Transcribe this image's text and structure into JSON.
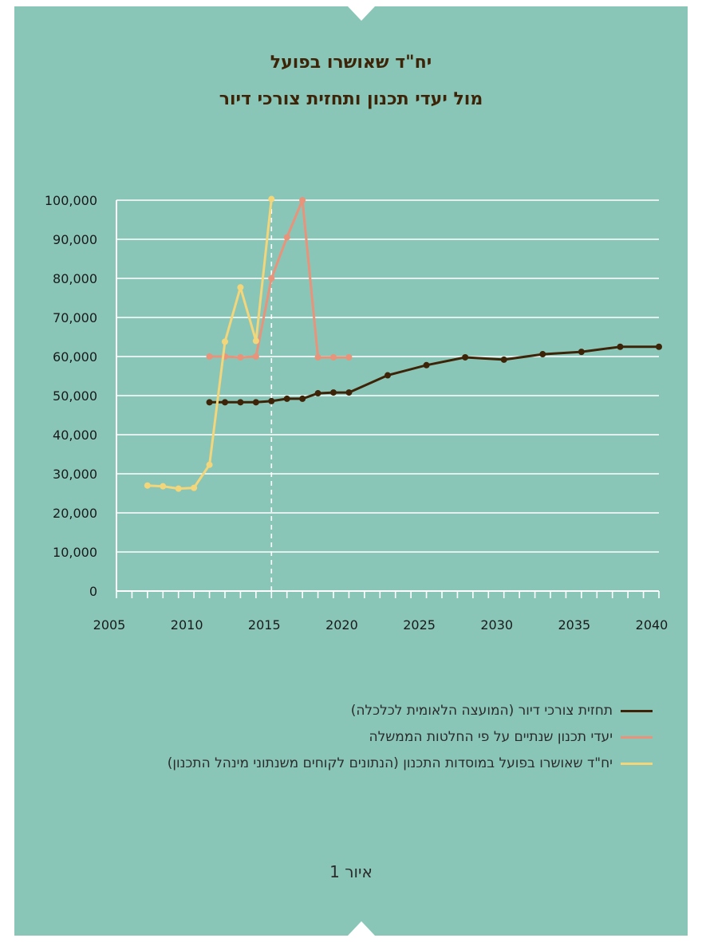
{
  "chart_data": {
    "type": "line",
    "title": [
      "יח\"ד שאושרו בפועל",
      "מול יעדי תכנון ותחזית צורכי דיור"
    ],
    "xlabel": "",
    "ylabel": "",
    "xlim": [
      2005,
      2040
    ],
    "ylim": [
      0,
      100000
    ],
    "x_ticks": [
      "2005",
      "2010",
      "2015",
      "2020",
      "2025",
      "2030",
      "2035",
      "2040"
    ],
    "y_ticks": [
      "0",
      "10,000",
      "20,000",
      "30,000",
      "40,000",
      "50,000",
      "60,000",
      "70,000",
      "80,000",
      "90,000",
      "100,000"
    ],
    "grid": true,
    "reference_line": {
      "x": 2015,
      "style": "dashed"
    },
    "legend_position": "bottom",
    "series": [
      {
        "name": "תחזית צורכי דיור (המועצה הלאומית לכלכלה)",
        "color": "#3d2408",
        "points": [
          [
            2011,
            48300
          ],
          [
            2012,
            48300
          ],
          [
            2013,
            48300
          ],
          [
            2014,
            48300
          ],
          [
            2015,
            48600
          ],
          [
            2016,
            49200
          ],
          [
            2017,
            49200
          ],
          [
            2018,
            50600
          ],
          [
            2019,
            50800
          ],
          [
            2020,
            50800
          ],
          [
            2022.5,
            55200
          ],
          [
            2025,
            57800
          ],
          [
            2027.5,
            59800
          ],
          [
            2030,
            59200
          ],
          [
            2032.5,
            60600
          ],
          [
            2035,
            61200
          ],
          [
            2037.5,
            62500
          ],
          [
            2040,
            62500
          ]
        ]
      },
      {
        "name": "יעדי תכנון שנתיים על פי החלטות הממשלה",
        "color": "#e8937a",
        "points": [
          [
            2011,
            60000
          ],
          [
            2012,
            60000
          ],
          [
            2013,
            59800
          ],
          [
            2014,
            60000
          ],
          [
            2015,
            80000
          ],
          [
            2016,
            90500
          ],
          [
            2017,
            100000
          ],
          [
            2018,
            59800
          ],
          [
            2019,
            59800
          ],
          [
            2020,
            59800
          ]
        ]
      },
      {
        "name": "יח\"ד שאושרו בפועל במוסדות התכנון (הנתונים לקוחים משנתוני מינהל התכנון)",
        "color": "#f3d57a",
        "points": [
          [
            2007,
            27000
          ],
          [
            2008,
            26800
          ],
          [
            2009,
            26200
          ],
          [
            2010,
            26400
          ],
          [
            2011,
            32300
          ],
          [
            2012,
            63800
          ],
          [
            2013,
            77700
          ],
          [
            2014,
            64000
          ],
          [
            2015,
            100300
          ]
        ]
      }
    ]
  },
  "caption": "איור 1"
}
